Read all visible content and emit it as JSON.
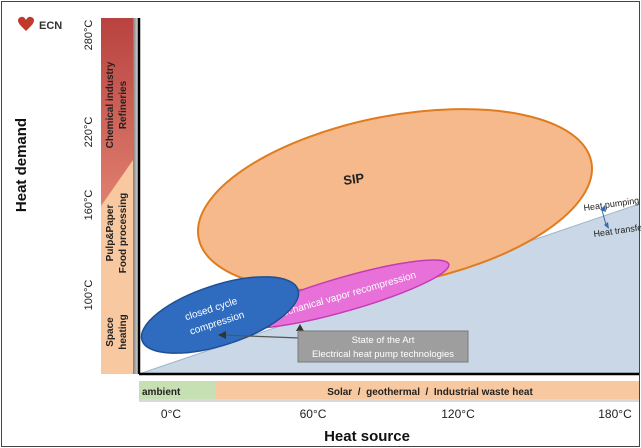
{
  "logo": {
    "text": "ECN"
  },
  "y_axis": {
    "title": "Heat demand",
    "ticks": [
      "280°C",
      "220°C",
      "160°C",
      "100°C"
    ]
  },
  "demand_sectors": {
    "chemical": [
      "Chemical industry",
      "Refineries"
    ],
    "pulp": [
      "Pulp&Paper",
      "Food processing"
    ],
    "space": [
      "Space",
      "heating"
    ]
  },
  "x_axis": {
    "title": "Heat source",
    "ticks": [
      "0°C",
      "60°C",
      "120°C",
      "180°C"
    ]
  },
  "source_bar": {
    "ambient": "ambient",
    "others": "Solar  /  geothermal  /  Industrial waste heat"
  },
  "regions": {
    "sip": "SIP",
    "mvr": "mechanical  vapor recompression",
    "closed_cycle": [
      "closed cycle",
      "compression"
    ],
    "heat_pumping": "Heat pumping",
    "heat_transfer": "Heat transfer"
  },
  "callout": [
    "State of the Art",
    "Electrical heat pump technologies"
  ],
  "colors": {
    "triangle": "#c9d7e6",
    "sip_fill": "#f6b98b",
    "sip_stroke": "#e07b1e",
    "mvr_fill": "#e870d9",
    "closed_fill": "#2f6cbf",
    "bar_peach": "#f8c9a0",
    "bar_red": "#c0504d",
    "ambient": "#c6e0b4",
    "callout": "#9e9e9e"
  }
}
